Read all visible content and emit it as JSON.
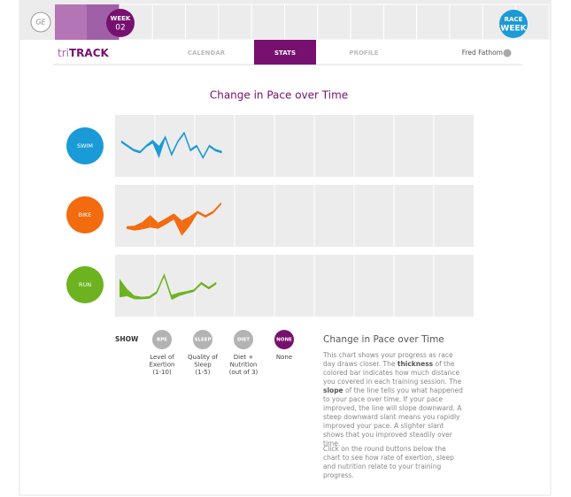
{
  "header": {
    "logo": "GE",
    "week_label": "WEEK",
    "week_number": "02",
    "race_label": "RACE",
    "race_label_2": "WEEK",
    "brand_light": "tri",
    "brand_bold": "TRACK",
    "tabs": [
      "CALENDAR",
      "STATS",
      "PROFILE"
    ],
    "active_tab": 1,
    "user": "Fred Fathom"
  },
  "chart_data": [
    {
      "type": "ribbon",
      "name": "SWIM",
      "color": "#1a9ad6",
      "ylim": [
        0,
        100
      ],
      "values": [
        57,
        50,
        43,
        40,
        50,
        57,
        40,
        64,
        36,
        57,
        71,
        43,
        50,
        31,
        50,
        43,
        40
      ],
      "thickness": [
        4,
        4,
        4,
        4,
        4,
        6,
        20,
        4,
        6,
        4,
        4,
        4,
        4,
        4,
        4,
        4,
        4
      ]
    },
    {
      "type": "ribbon",
      "name": "BIKE",
      "color": "#f26b0f",
      "ylim": [
        0,
        100
      ],
      "values": [
        31,
        30,
        34,
        41,
        34,
        41,
        49,
        30,
        41,
        56,
        49,
        56,
        70
      ],
      "thickness": [
        4,
        8,
        12,
        20,
        10,
        10,
        10,
        25,
        16,
        4,
        4,
        4,
        4
      ]
    },
    {
      "type": "ribbon",
      "name": "RUN",
      "color": "#6cb31f",
      "ylim": [
        0,
        100
      ],
      "values": [
        46,
        39,
        31,
        30,
        31,
        39,
        67,
        31,
        36,
        39,
        42,
        54,
        46,
        54
      ],
      "thickness": [
        30,
        12,
        6,
        4,
        4,
        4,
        4,
        8,
        6,
        4,
        4,
        4,
        4,
        4
      ]
    }
  ],
  "title": "Change in Pace over Time",
  "show": {
    "label": "SHOW",
    "buttons": [
      {
        "name": "RPE",
        "caption": [
          "Level of",
          "Exertion",
          "(1-10)"
        ]
      },
      {
        "name": "SLEEP",
        "caption": [
          "Quality of",
          "Sleep",
          "(1-5)"
        ]
      },
      {
        "name": "DIET",
        "caption": [
          "Diet +",
          "Nutrition",
          "(out of 3)"
        ]
      },
      {
        "name": "NONE",
        "caption": [
          "None"
        ],
        "active": true
      }
    ]
  },
  "info": {
    "heading": "Change in Pace over Time",
    "paragraph_1": [
      {
        "text": "This chart shows your progress as race day draws closer. The "
      },
      {
        "text": "thickness",
        "bold": true
      },
      {
        "text": " of the colored bar indicates how much distance you covered in each training session. The "
      },
      {
        "text": "slope",
        "bold": true
      },
      {
        "text": " of the line tells you what happened to your pace over time. If your pace improved, the line will slope downward. A steep downward slant means you rapidly improved your pace. A slighter slant shows that you improved steadily over time."
      }
    ],
    "paragraph_2": "Click on the round buttons below the chart to see how rate of exertion, sleep and nutrition relate to your training progress."
  }
}
